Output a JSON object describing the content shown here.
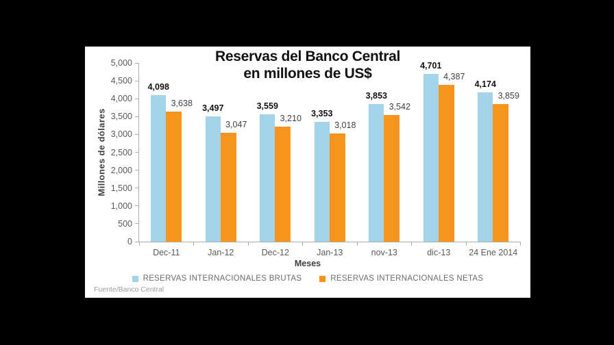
{
  "chart_data": {
    "type": "bar",
    "title": "Reservas del Banco Central en millones de US$",
    "title_lines": [
      "Reservas del Banco Central",
      "en millones de US$"
    ],
    "xlabel": "Meses",
    "ylabel": "Millones de dólares",
    "ylim": [
      0,
      5000
    ],
    "ytick_step": 500,
    "ytick_labels": [
      "0",
      "500",
      "1,000",
      "1,500",
      "2,000",
      "2,500",
      "3,000",
      "3,500",
      "4,000",
      "4,500",
      "5,000"
    ],
    "grid": false,
    "legend_position": "bottom",
    "categories": [
      "Dec-11",
      "Jan-12",
      "Dec-12",
      "Jan-13",
      "nov-13",
      "dic-13",
      "24 Ene 2014"
    ],
    "series": [
      {
        "name": "RESERVAS INTERNACIONALES BRUTAS",
        "color": "#A3D3E8",
        "values": [
          4098,
          3497,
          3559,
          3353,
          3853,
          4701,
          4174
        ],
        "labels": [
          "4,098",
          "3,497",
          "3,559",
          "3,353",
          "3,853",
          "4,701",
          "4,174"
        ]
      },
      {
        "name": "RESERVAS INTERNACIONALES NETAS",
        "color": "#F6941E",
        "values": [
          3638,
          3047,
          3210,
          3018,
          3542,
          4387,
          3859
        ],
        "labels": [
          "3,638",
          "3,047",
          "3,210",
          "3,018",
          "3,542",
          "4,387",
          "3,859"
        ]
      }
    ]
  },
  "source_note": "Fuente/Banco Central"
}
